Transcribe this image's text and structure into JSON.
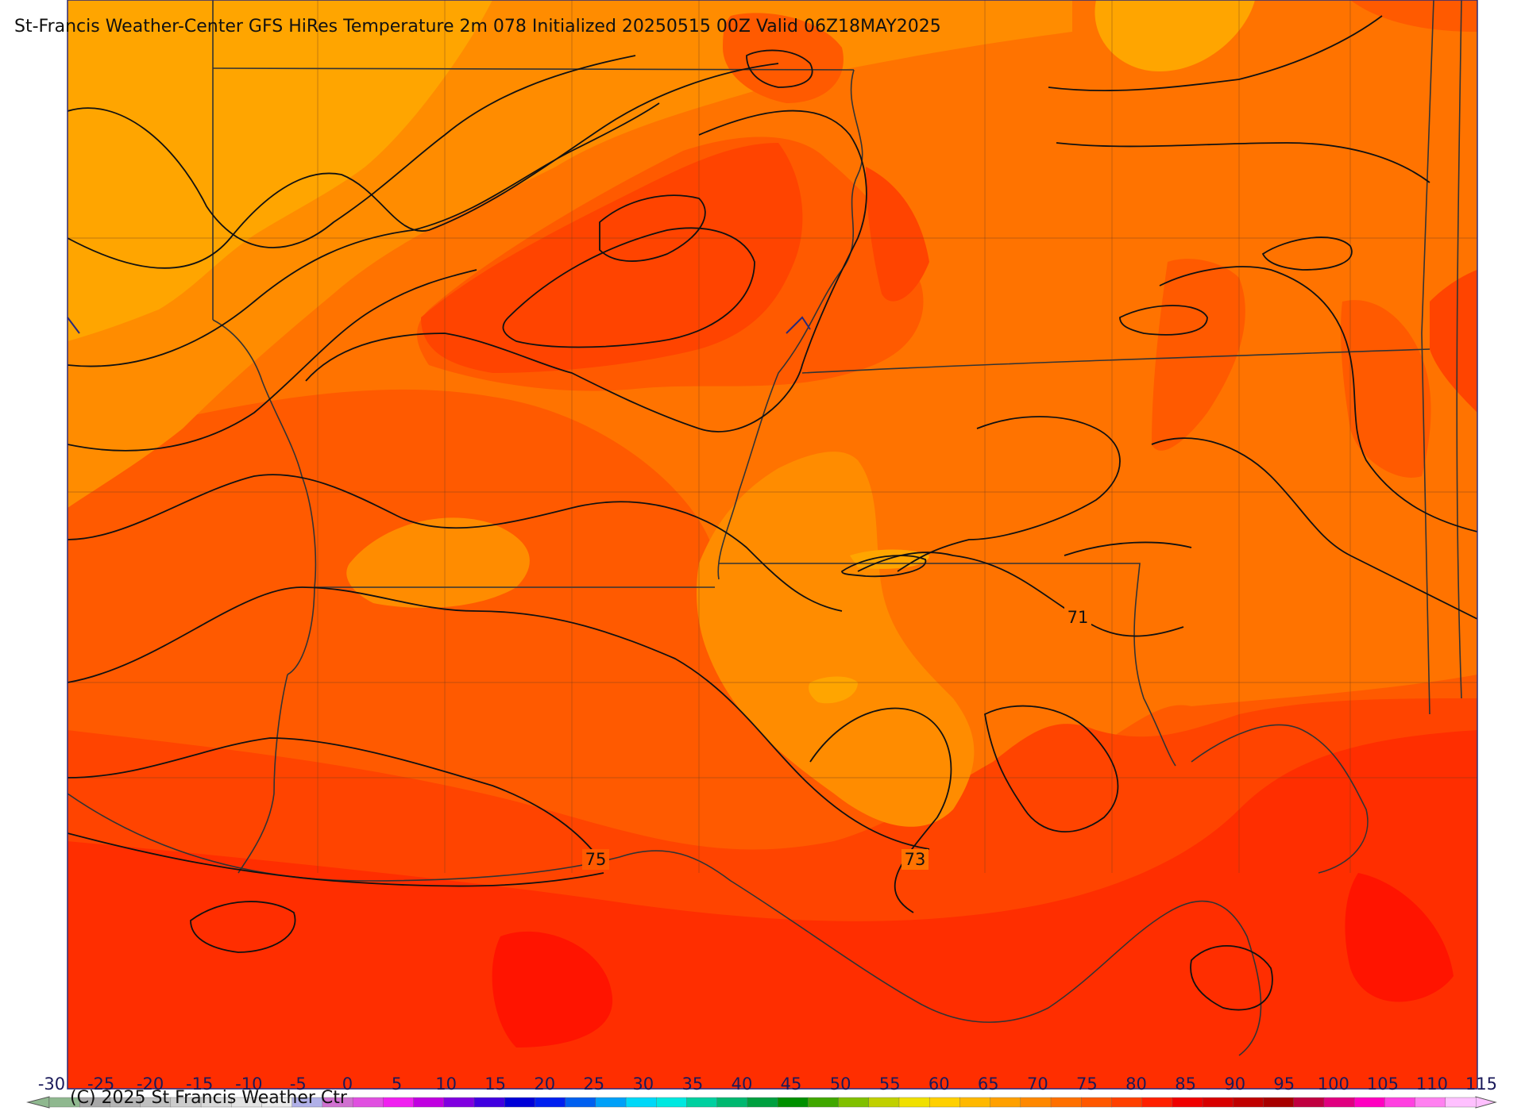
{
  "title": "St-Francis Weather-Center GFS HiRes Temperature 2m  078 Initialized 20250515 00Z Valid 06Z18MAY2025",
  "copyright": "(C) 2025 St Francis Weather Ctr",
  "contour_labels": [
    "71",
    "73",
    "75"
  ],
  "legend": {
    "ticks": [
      "-30",
      "-25",
      "-20",
      "-15",
      "-10",
      "-5",
      "0",
      "5",
      "10",
      "15",
      "20",
      "25",
      "30",
      "35",
      "40",
      "45",
      "50",
      "55",
      "60",
      "65",
      "70",
      "75",
      "80",
      "85",
      "90",
      "95",
      "100",
      "105",
      "110",
      "115"
    ],
    "colors": [
      "#8fb88f",
      "#a8a8a8",
      "#b4b4b4",
      "#c0c0c0",
      "#cccccc",
      "#d8d8d8",
      "#e2e2e2",
      "#eaeaea",
      "#b0b0e8",
      "#d070d0",
      "#e050e0",
      "#f020f0",
      "#c000e0",
      "#8000e0",
      "#4000e0",
      "#0000d8",
      "#0020f0",
      "#0060f0",
      "#00a0f8",
      "#00d8f8",
      "#00e8e0",
      "#00d0a0",
      "#00b870",
      "#00a040",
      "#009000",
      "#40a800",
      "#80c000",
      "#c0d000",
      "#f0e000",
      "#ffd000",
      "#ffb800",
      "#ffa000",
      "#ff8800",
      "#ff7000",
      "#ff5800",
      "#ff4000",
      "#ff2000",
      "#f00000",
      "#d80000",
      "#c00000",
      "#a80000",
      "#c00040",
      "#e00080",
      "#ff00c0",
      "#ff40e0",
      "#ff80f0",
      "#ffc0ff"
    ]
  },
  "palette": {
    "t_66": "#ffa500",
    "t_68": "#ff8c00",
    "t_70": "#ff7300",
    "t_72": "#ff5a00",
    "t_74": "#ff4400",
    "t_76": "#ff2e00",
    "t_78": "#ff1400",
    "frame": "#2a2a7a"
  }
}
